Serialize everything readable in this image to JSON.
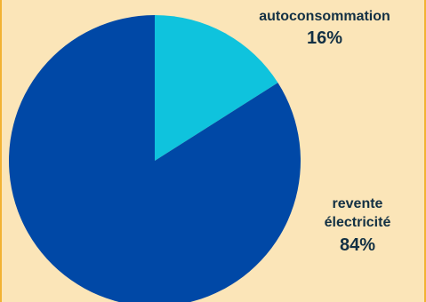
{
  "chart_data": {
    "type": "pie",
    "slices": [
      {
        "label": "autoconsommation",
        "value": 16,
        "value_label": "16%",
        "color": "#0fc3dd"
      },
      {
        "label": "revente électricité",
        "label_lines": [
          "revente",
          "électricité"
        ],
        "value": 84,
        "value_label": "84%",
        "color": "#0048a6"
      }
    ],
    "title": "",
    "legend": "none",
    "start_angle_deg": 0,
    "direction": "clockwise"
  },
  "colors": {
    "background": "#fbe5b8",
    "border": "#f2b233",
    "label_text": "#123044"
  }
}
